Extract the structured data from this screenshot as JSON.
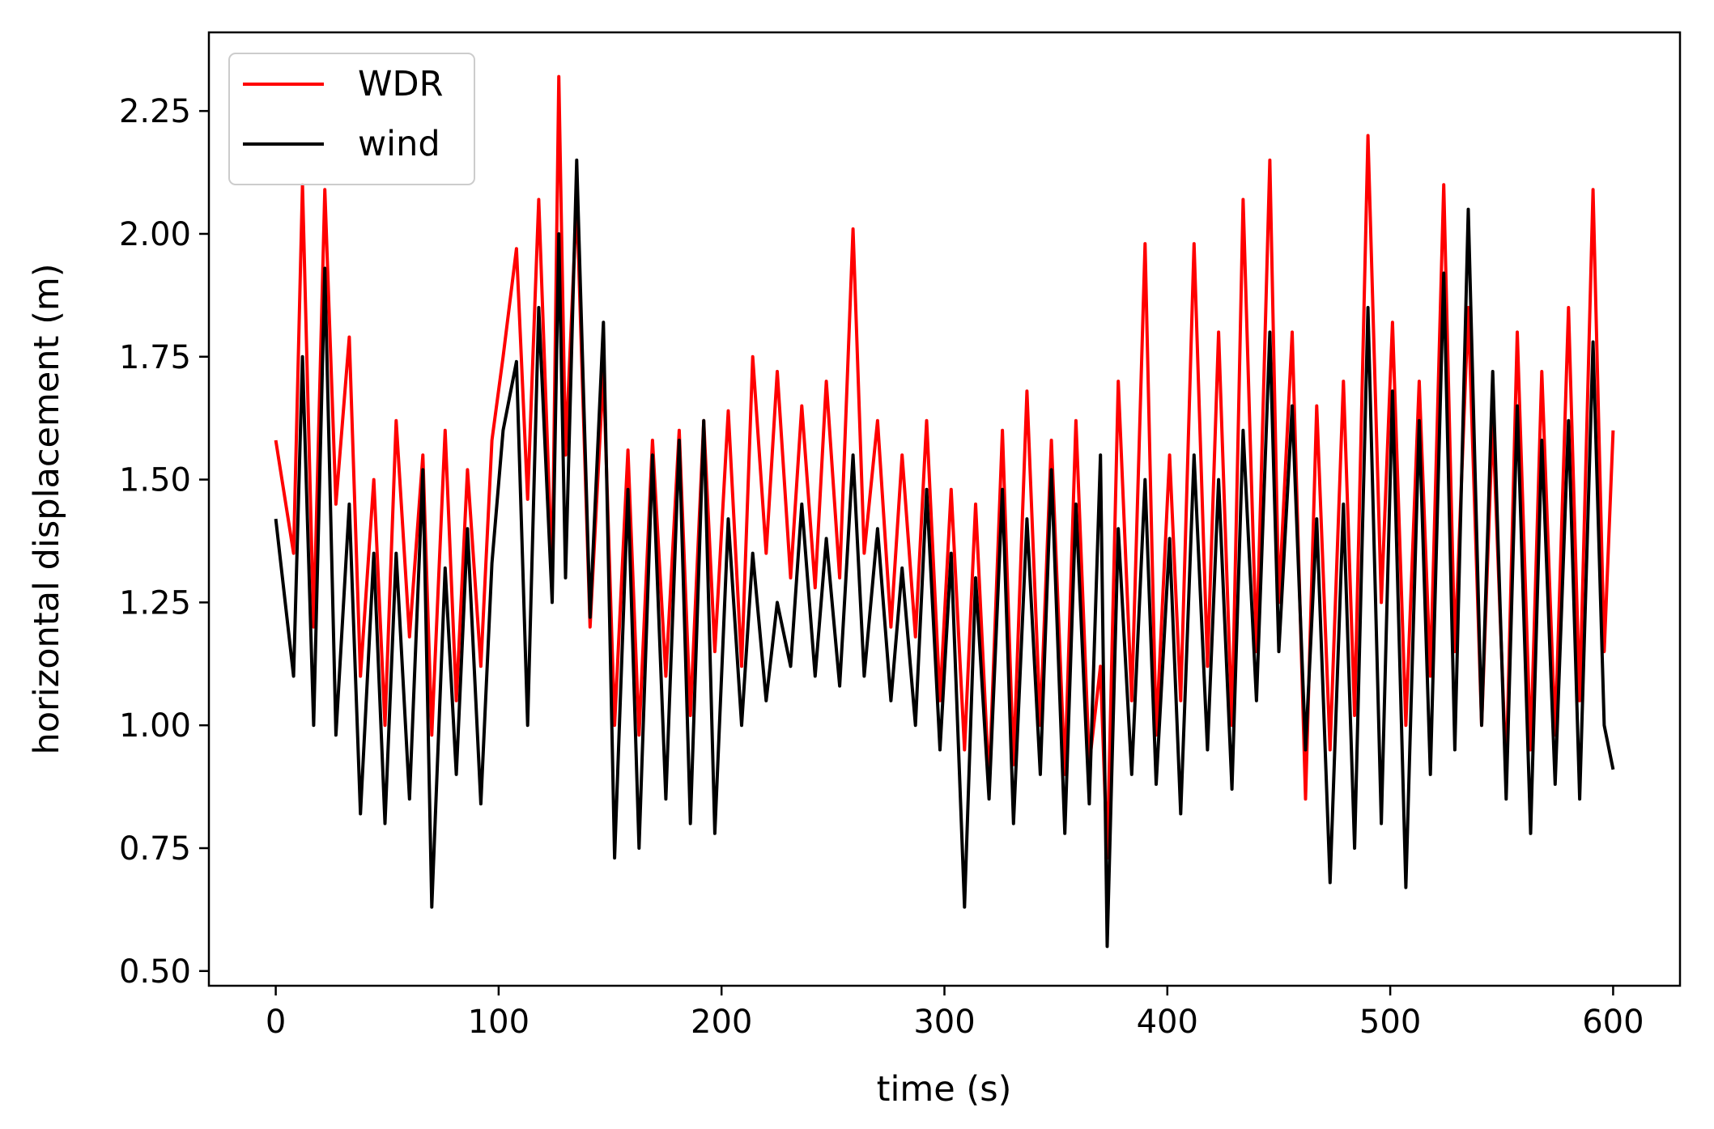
{
  "chart_data": {
    "type": "line",
    "xlabel": "time (s)",
    "ylabel": "horizontal displacement (m)",
    "xlim": [
      -30,
      630
    ],
    "ylim": [
      0.47,
      2.41
    ],
    "xticks": [
      0,
      100,
      200,
      300,
      400,
      500,
      600
    ],
    "xtick_labels": [
      "0",
      "100",
      "200",
      "300",
      "400",
      "500",
      "600"
    ],
    "yticks": [
      0.5,
      0.75,
      1.0,
      1.25,
      1.5,
      1.75,
      2.0,
      2.25
    ],
    "ytick_labels": [
      "0.50",
      "0.75",
      "1.00",
      "1.25",
      "1.50",
      "1.75",
      "2.00",
      "2.25"
    ],
    "grid": false,
    "legend_position": "top-left",
    "series": [
      {
        "name": "WDR",
        "color": "#ff0000",
        "x": [
          0,
          8,
          12,
          17,
          22,
          27,
          33,
          38,
          44,
          49,
          54,
          60,
          66,
          70,
          76,
          81,
          86,
          92,
          97,
          102,
          108,
          113,
          118,
          124,
          127,
          130,
          135,
          141,
          147,
          152,
          158,
          163,
          169,
          175,
          181,
          186,
          192,
          197,
          203,
          209,
          214,
          220,
          225,
          231,
          236,
          242,
          247,
          253,
          259,
          264,
          270,
          276,
          281,
          287,
          292,
          298,
          303,
          309,
          314,
          320,
          326,
          331,
          337,
          343,
          348,
          354,
          359,
          365,
          370,
          373,
          378,
          384,
          390,
          395,
          401,
          406,
          412,
          418,
          423,
          429,
          434,
          440,
          446,
          450,
          456,
          462,
          467,
          473,
          479,
          484,
          490,
          496,
          501,
          507,
          513,
          518,
          524,
          529,
          535,
          541,
          546,
          552,
          557,
          563,
          568,
          574,
          580,
          585,
          591,
          596,
          600
        ],
        "values": [
          1.58,
          1.35,
          2.1,
          1.2,
          2.09,
          1.45,
          1.79,
          1.1,
          1.5,
          1.0,
          1.62,
          1.18,
          1.55,
          0.98,
          1.6,
          1.05,
          1.52,
          1.12,
          1.58,
          1.75,
          1.97,
          1.46,
          2.07,
          1.3,
          2.32,
          1.55,
          2.07,
          1.2,
          1.72,
          1.0,
          1.56,
          0.98,
          1.58,
          1.1,
          1.6,
          1.02,
          1.62,
          1.15,
          1.64,
          1.12,
          1.75,
          1.35,
          1.72,
          1.3,
          1.65,
          1.28,
          1.7,
          1.3,
          2.01,
          1.35,
          1.62,
          1.2,
          1.55,
          1.18,
          1.62,
          1.05,
          1.48,
          0.95,
          1.45,
          0.88,
          1.6,
          0.92,
          1.68,
          1.0,
          1.58,
          0.9,
          1.62,
          0.92,
          1.12,
          0.73,
          1.7,
          1.05,
          1.98,
          0.98,
          1.55,
          1.05,
          1.98,
          1.12,
          1.8,
          1.0,
          2.07,
          1.15,
          2.15,
          1.25,
          1.8,
          0.85,
          1.65,
          0.95,
          1.7,
          1.02,
          2.2,
          1.25,
          1.82,
          1.0,
          1.7,
          1.1,
          2.1,
          1.15,
          1.85,
          1.0,
          1.62,
          0.9,
          1.8,
          0.95,
          1.72,
          0.98,
          1.85,
          1.05,
          2.09,
          1.15,
          1.6
        ]
      },
      {
        "name": "wind",
        "color": "#000000",
        "x": [
          0,
          8,
          12,
          17,
          22,
          27,
          33,
          38,
          44,
          49,
          54,
          60,
          66,
          70,
          76,
          81,
          86,
          92,
          97,
          102,
          108,
          113,
          118,
          124,
          127,
          130,
          135,
          141,
          147,
          152,
          158,
          163,
          169,
          175,
          181,
          186,
          192,
          197,
          203,
          209,
          214,
          220,
          225,
          231,
          236,
          242,
          247,
          253,
          259,
          264,
          270,
          276,
          281,
          287,
          292,
          298,
          303,
          309,
          314,
          320,
          326,
          331,
          337,
          343,
          348,
          354,
          359,
          365,
          370,
          373,
          378,
          384,
          390,
          395,
          401,
          406,
          412,
          418,
          423,
          429,
          434,
          440,
          446,
          450,
          456,
          462,
          467,
          473,
          479,
          484,
          490,
          496,
          501,
          507,
          513,
          518,
          524,
          529,
          535,
          541,
          546,
          552,
          557,
          563,
          568,
          574,
          580,
          585,
          591,
          596,
          600
        ],
        "values": [
          1.42,
          1.1,
          1.75,
          1.0,
          1.93,
          0.98,
          1.45,
          0.82,
          1.35,
          0.8,
          1.35,
          0.85,
          1.52,
          0.63,
          1.32,
          0.9,
          1.4,
          0.84,
          1.33,
          1.6,
          1.74,
          1.0,
          1.85,
          1.25,
          2.0,
          1.3,
          2.15,
          1.22,
          1.82,
          0.73,
          1.48,
          0.75,
          1.55,
          0.85,
          1.58,
          0.8,
          1.62,
          0.78,
          1.42,
          1.0,
          1.35,
          1.05,
          1.25,
          1.12,
          1.45,
          1.1,
          1.38,
          1.08,
          1.55,
          1.1,
          1.4,
          1.05,
          1.32,
          1.0,
          1.48,
          0.95,
          1.35,
          0.63,
          1.3,
          0.85,
          1.48,
          0.8,
          1.42,
          0.9,
          1.52,
          0.78,
          1.45,
          0.84,
          1.55,
          0.55,
          1.4,
          0.9,
          1.5,
          0.88,
          1.38,
          0.82,
          1.55,
          0.95,
          1.5,
          0.87,
          1.6,
          1.05,
          1.8,
          1.15,
          1.65,
          0.95,
          1.42,
          0.68,
          1.45,
          0.75,
          1.85,
          0.8,
          1.68,
          0.67,
          1.62,
          0.9,
          1.92,
          0.95,
          2.05,
          1.0,
          1.72,
          0.85,
          1.65,
          0.78,
          1.58,
          0.88,
          1.62,
          0.85,
          1.78,
          1.0,
          0.91
        ]
      }
    ]
  }
}
